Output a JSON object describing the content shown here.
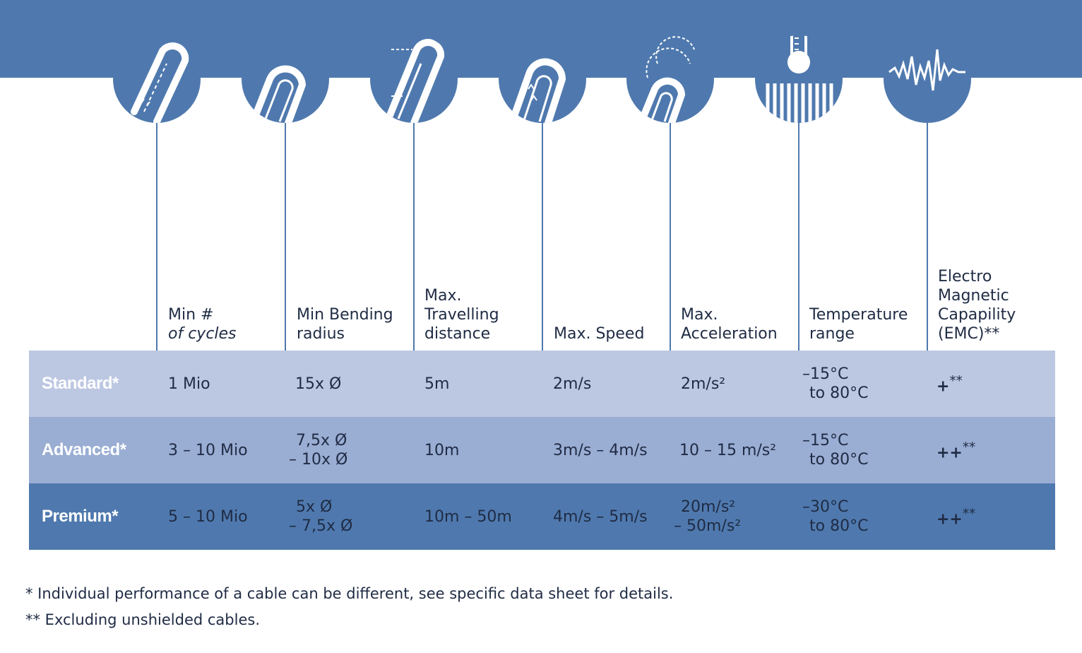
{
  "headers": [
    {
      "lines": [
        "Min #"
      ],
      "italic": "of cycles"
    },
    {
      "lines": [
        "Min Bending",
        "radius"
      ]
    },
    {
      "lines": [
        "Max.",
        "Travelling",
        "distance"
      ]
    },
    {
      "lines": [
        "Max. Speed"
      ]
    },
    {
      "lines": [
        "Max.",
        "Acceleration"
      ]
    },
    {
      "lines": [
        "Temperature",
        "range"
      ]
    },
    {
      "lines": [
        "Electro",
        "Magnetic",
        "Capapility",
        "(EMC)**"
      ]
    }
  ],
  "rows": [
    {
      "label": "Standard*",
      "cells": [
        [
          "1 Mio"
        ],
        [
          "15x Ø"
        ],
        [
          "5m"
        ],
        [
          "2m/s"
        ],
        [
          "2m/s²"
        ],
        [
          "–15°C",
          " to 80°C"
        ],
        [
          {
            "plus": "+",
            "stars": "**"
          }
        ]
      ]
    },
    {
      "label": "Advanced*",
      "cells": [
        [
          "3 – 10 Mio"
        ],
        [
          " 7,5x Ø",
          "– 10x Ø"
        ],
        [
          "10m"
        ],
        [
          "3m/s – 4m/s"
        ],
        [
          "10 – 15 m/s²"
        ],
        [
          "–15°C",
          " to 80°C"
        ],
        [
          {
            "plus": "++",
            "stars": "**"
          }
        ]
      ]
    },
    {
      "label": "Premium*",
      "cells": [
        [
          "5 – 10 Mio"
        ],
        [
          " 5x Ø",
          "– 7,5x Ø"
        ],
        [
          "10m – 50m"
        ],
        [
          "4m/s – 5m/s"
        ],
        [
          " 20m/s²",
          "– 50m/s²"
        ],
        [
          "–30°C",
          " to 80°C"
        ],
        [
          {
            "plus": "++",
            "stars": "**"
          }
        ]
      ]
    }
  ],
  "icons": [
    "cycles-icon",
    "bending-radius-icon",
    "travelling-distance-icon",
    "speed-icon",
    "acceleration-icon",
    "thermometer-icon",
    "emc-wave-icon"
  ],
  "footnotes": [
    "* Individual performance of a cable can be different, see specific data sheet for details.",
    "** Excluding unshielded cables."
  ],
  "colors": {
    "band": "#4f79ae",
    "standard_row": "#bcc7e2",
    "advanced_row": "#9aadd3",
    "premium_row": "#4f79ae",
    "text": "#1f2b44"
  }
}
